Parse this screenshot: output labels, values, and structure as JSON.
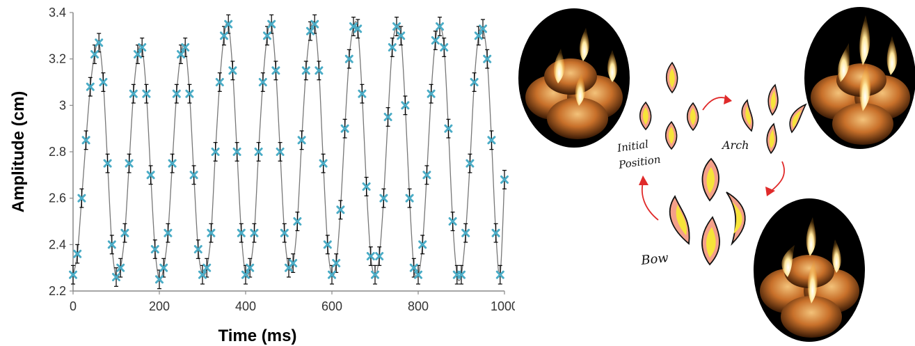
{
  "chart_data": {
    "type": "scatter",
    "title": "",
    "xlabel": "Time (ms)",
    "ylabel": "Amplitude (cm)",
    "xlim": [
      0,
      1000
    ],
    "ylim": [
      2.2,
      3.4
    ],
    "x_ticks": [
      "0",
      "200",
      "400",
      "600",
      "800",
      "1000"
    ],
    "y_ticks": [
      "2.2",
      "2.4",
      "2.6",
      "2.8",
      "3",
      "3.2",
      "3.4"
    ],
    "grid": false,
    "legend": "none",
    "series": [
      {
        "marker": "x",
        "color": "#4BACC6",
        "line_color": "#777777",
        "error_bar_color": "#000000",
        "error_bar": 0.04,
        "x": [
          0,
          10,
          20,
          30,
          40,
          50,
          60,
          70,
          80,
          90,
          100,
          110,
          120,
          130,
          140,
          150,
          160,
          170,
          180,
          190,
          200,
          210,
          220,
          230,
          240,
          250,
          260,
          270,
          280,
          290,
          300,
          310,
          320,
          330,
          340,
          350,
          360,
          370,
          380,
          390,
          400,
          410,
          420,
          430,
          440,
          450,
          460,
          470,
          480,
          490,
          500,
          510,
          520,
          530,
          540,
          550,
          560,
          570,
          580,
          590,
          600,
          610,
          620,
          630,
          640,
          650,
          660,
          670,
          680,
          690,
          700,
          710,
          720,
          730,
          740,
          750,
          760,
          770,
          780,
          790,
          800,
          810,
          820,
          830,
          840,
          850,
          860,
          870,
          880,
          890,
          900,
          910,
          920,
          930,
          940,
          950,
          960,
          970,
          980,
          990,
          1000
        ],
        "y": [
          2.27,
          2.36,
          2.6,
          2.85,
          3.08,
          3.22,
          3.27,
          3.1,
          2.75,
          2.4,
          2.26,
          2.3,
          2.45,
          2.75,
          3.05,
          3.22,
          3.25,
          3.05,
          2.7,
          2.38,
          2.25,
          2.3,
          2.45,
          2.75,
          3.05,
          3.22,
          3.25,
          3.05,
          2.7,
          2.38,
          2.27,
          2.3,
          2.45,
          2.8,
          3.1,
          3.3,
          3.35,
          3.15,
          2.8,
          2.45,
          2.27,
          2.3,
          2.45,
          2.8,
          3.1,
          3.3,
          3.35,
          3.15,
          2.8,
          2.45,
          2.3,
          2.32,
          2.5,
          2.85,
          3.15,
          3.32,
          3.35,
          3.15,
          2.75,
          2.4,
          2.27,
          2.32,
          2.55,
          2.9,
          3.2,
          3.34,
          3.33,
          3.05,
          2.65,
          2.35,
          2.27,
          2.35,
          2.6,
          2.95,
          3.25,
          3.34,
          3.3,
          3.0,
          2.6,
          2.3,
          2.27,
          2.4,
          2.7,
          3.05,
          3.28,
          3.34,
          3.25,
          2.9,
          2.5,
          2.27,
          2.27,
          2.45,
          2.75,
          3.1,
          3.3,
          3.33,
          3.2,
          2.85,
          2.45,
          2.27,
          2.68
        ]
      }
    ]
  },
  "figure": {
    "labels": {
      "initial": "Initial",
      "position": "Position",
      "arch": "Arch",
      "bow": "Bow"
    },
    "colors": {
      "arrow": "#e02a2a",
      "flame_outer": "#e04a2a",
      "flame_inner": "#f7e43a",
      "photo_bg": "#000000",
      "candle_wax": "#c8702a"
    },
    "photo_icons": [
      "candle-photo-initial",
      "candle-photo-arch",
      "candle-photo-bow"
    ]
  }
}
